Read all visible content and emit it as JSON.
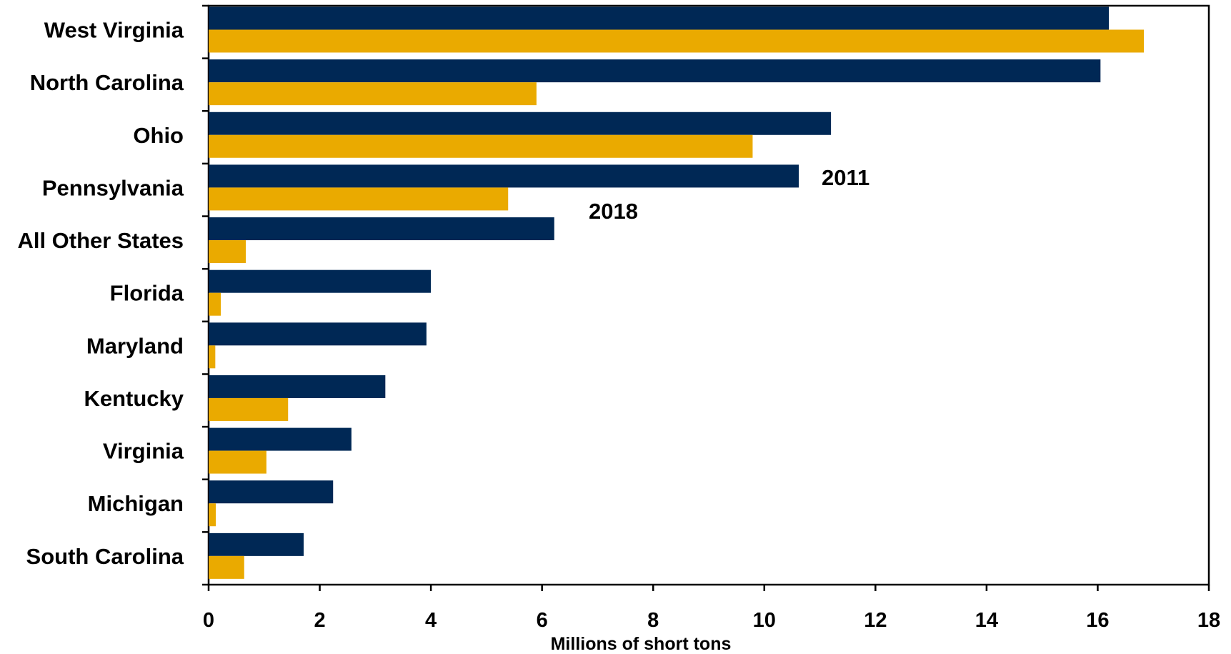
{
  "chart_data": {
    "type": "bar",
    "orientation": "horizontal",
    "categories": [
      "West Virginia",
      "North Carolina",
      "Ohio",
      "Pennsylvania",
      "All Other States",
      "Florida",
      "Maryland",
      "Kentucky",
      "Virginia",
      "Michigan",
      "South Carolina"
    ],
    "series": [
      {
        "name": "2011",
        "color": "#002855",
        "values": [
          16.2,
          16.05,
          11.2,
          10.62,
          6.22,
          4.0,
          3.92,
          3.18,
          2.57,
          2.24,
          1.71
        ]
      },
      {
        "name": "2018",
        "color": "#EAAA00",
        "values": [
          16.83,
          5.9,
          9.79,
          5.39,
          0.67,
          0.22,
          0.12,
          1.43,
          1.04,
          0.13,
          0.64
        ]
      }
    ],
    "xlabel": "Millions of short tons",
    "ylabel": "",
    "xlim": [
      0,
      18
    ],
    "xticks": [
      "0",
      "2",
      "4",
      "6",
      "8",
      "10",
      "12",
      "14",
      "16",
      "18"
    ],
    "grid": false,
    "legend": "inline labels next to the Pennsylvania bars"
  }
}
